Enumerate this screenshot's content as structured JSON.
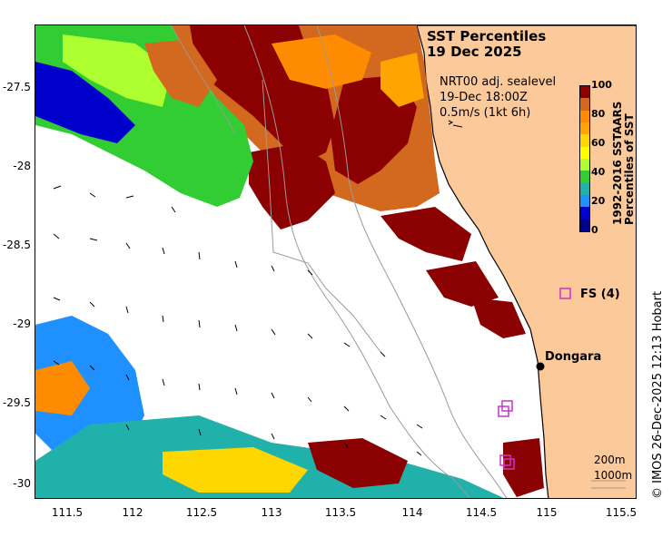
{
  "title": {
    "line1": "SST Percentiles",
    "line2": "19 Dec 2025"
  },
  "overlay": {
    "line1": "NRT00 adj. sealevel",
    "line2": "19-Dec 18:00Z",
    "line3": "0.5m/s (1kt 6h)"
  },
  "colorbar": {
    "label_line1": "1992-2016 SSTAARS",
    "label_line2": "Percentiles of SST",
    "ticks": [
      "100",
      "80",
      "60",
      "40",
      "20",
      "0"
    ],
    "colors": [
      "#8b0000",
      "#d2691e",
      "#ff8c00",
      "#ffa500",
      "#ffd700",
      "#ffff00",
      "#adff2f",
      "#32cd32",
      "#20b2aa",
      "#1e90ff",
      "#0000cd",
      "#00008b"
    ]
  },
  "y_axis": {
    "ticks": [
      "-27.5",
      "-28",
      "-28.5",
      "-29",
      "-29.5",
      "-30"
    ]
  },
  "x_axis": {
    "ticks": [
      "111.5",
      "112",
      "112.5",
      "113",
      "113.5",
      "114",
      "114.5",
      "115",
      "115.5"
    ]
  },
  "places": {
    "dongara": "Dongara",
    "fs": "FS (4)"
  },
  "isobaths": {
    "a": "200m",
    "b": "1000m"
  },
  "credit": "© IMOS 26-Dec-2025 12:13 Hobart",
  "colors": {
    "land": "#fcc99a",
    "warm_dark": "#8b0000",
    "warm": "#d2691e",
    "orange": "#ff8c00",
    "marker": "#cc33cc"
  }
}
